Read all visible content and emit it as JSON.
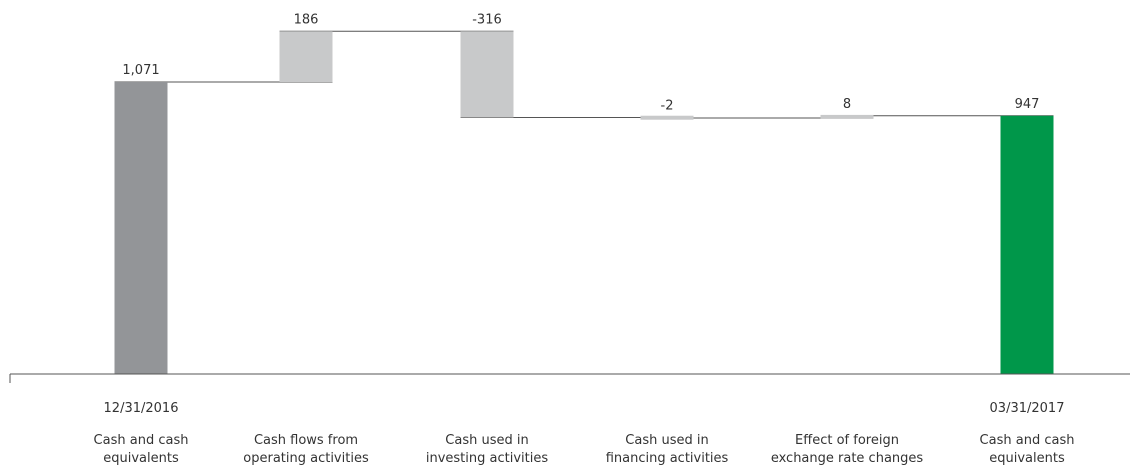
{
  "chart_data": {
    "type": "bar",
    "subtype": "waterfall",
    "title": "",
    "xlabel": "",
    "ylabel": "",
    "categories": [
      [
        "Cash and cash",
        "equivalents"
      ],
      [
        "Cash flows from",
        "operating activities"
      ],
      [
        "Cash used in",
        "investing activities"
      ],
      [
        "Cash used in",
        "financing activities"
      ],
      [
        "Effect of foreign",
        "exchange rate changes"
      ],
      [
        "Cash and cash",
        "equivalents"
      ]
    ],
    "date_labels": [
      "12/31/2016",
      "",
      "",
      "",
      "",
      "03/31/2017"
    ],
    "values": [
      1071,
      186,
      -316,
      -2,
      8,
      947
    ],
    "value_labels": [
      "1,071",
      "186",
      "-316",
      "-2",
      "8",
      "947"
    ],
    "bar_kinds": [
      "total",
      "delta",
      "delta",
      "delta",
      "delta",
      "total"
    ],
    "ylim": [
      0,
      1400
    ],
    "grid": false,
    "colors": {
      "start_total": "#939598",
      "delta": "#c8c9ca",
      "end_total": "#00974a",
      "connector": "#555555",
      "axis": "#555555",
      "text": "#333333",
      "end_text": "#00974a"
    }
  }
}
